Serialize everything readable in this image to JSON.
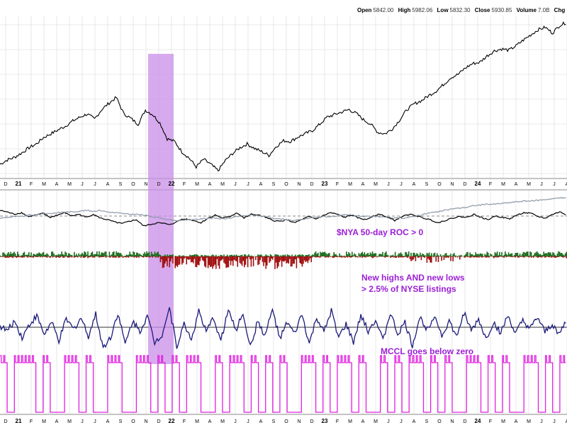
{
  "header": {
    "open_label": "Open",
    "open_value": "5842.00",
    "high_label": "High",
    "high_value": "5982.06",
    "low_label": "Low",
    "low_value": "5832.30",
    "close_label": "Close",
    "close_value": "5930.85",
    "volume_label": "Volume",
    "volume_value": "7.0B",
    "change_label": "Chg"
  },
  "annotations": {
    "roc": "$NYA 50-day ROC > 0",
    "hilo_1": "New highs AND new lows",
    "hilo_2": "> 2.5% of NYSE listings",
    "mccl": "MCCL goes below zero"
  },
  "colors": {
    "price": "#000000",
    "nya": "#000000",
    "nya_ma": "#8c9aa8",
    "hilo_up": "#1e6b1e",
    "hilo_down": "#a01010",
    "mccl": "#1a1a7a",
    "signal": "#e020e0",
    "highlight": "#c98ee8",
    "annotation": "#9b1fd6",
    "grid": "#d8d8d8"
  },
  "chart_data": {
    "type": "line",
    "x_axis": {
      "years": [
        "21",
        "22",
        "23",
        "24"
      ],
      "month_ticks_top": [
        "D",
        "21",
        "F",
        "M",
        "A",
        "M",
        "J",
        "J",
        "A",
        "S",
        "O",
        "N",
        "D",
        "22",
        "F",
        "M",
        "A",
        "M",
        "J",
        "J",
        "A",
        "S",
        "O",
        "N",
        "D",
        "23",
        "F",
        "M",
        "A",
        "M",
        "J",
        "J",
        "A",
        "S",
        "O",
        "N",
        "D",
        "24",
        "F",
        "M",
        "A",
        "M",
        "J",
        "J",
        "A"
      ],
      "month_ticks_bottom": [
        "D",
        "21",
        "F",
        "M",
        "A",
        "M",
        "J",
        "J",
        "A",
        "S",
        "O",
        "N",
        "D",
        "22",
        "F",
        "M",
        "A",
        "M",
        "J",
        "J",
        "A",
        "S",
        "O",
        "N",
        "D",
        "23",
        "F",
        "M",
        "A",
        "M",
        "J",
        "J",
        "A",
        "S",
        "O",
        "N",
        "D",
        "24",
        "F",
        "M",
        "A",
        "M",
        "J",
        "J",
        "A"
      ]
    },
    "highlight": {
      "start": "2021-12",
      "end": "2022-01"
    },
    "series": [
      {
        "panel": "price",
        "values": [
          3700,
          3770,
          3810,
          3880,
          3960,
          4020,
          4120,
          4180,
          4240,
          4300,
          4380,
          4440,
          4490,
          4410,
          4560,
          4660,
          4750,
          4500,
          4420,
          4330,
          4550,
          4480,
          4350,
          4100,
          4060,
          3900,
          3800,
          3660,
          3780,
          3700,
          3600,
          3760,
          3870,
          3960,
          4020,
          3950,
          3900,
          3840,
          3980,
          4070,
          4060,
          4130,
          4180,
          4230,
          4330,
          4440,
          4480,
          4520,
          4560,
          4500,
          4400,
          4330,
          4200,
          4180,
          4260,
          4400,
          4560,
          4650,
          4700,
          4780,
          4850,
          4950,
          5060,
          5110,
          5210,
          5280,
          5300,
          5400,
          5480,
          5510,
          5490,
          5560,
          5650,
          5730,
          5810,
          5850,
          5760,
          5880,
          5930
        ]
      },
      {
        "panel": "nya",
        "values": [
          0.3,
          0.28,
          0.25,
          0.27,
          0.22,
          0.24,
          0.26,
          0.21,
          0.24,
          0.27,
          0.23,
          0.25,
          0.21,
          0.25,
          0.2,
          0.18,
          0.15,
          0.13,
          0.16,
          0.18,
          0.1,
          0.12,
          0.14,
          0.13,
          0.12,
          0.18,
          0.19,
          0.17,
          0.14,
          0.2,
          0.24,
          0.2,
          0.22,
          0.27,
          0.2,
          0.25,
          0.24,
          0.21,
          0.17,
          0.16,
          0.18,
          0.14,
          0.18,
          0.22,
          0.19,
          0.23,
          0.27,
          0.25,
          0.21,
          0.24,
          0.2,
          0.18,
          0.23,
          0.25,
          0.21,
          0.17,
          0.22,
          0.25,
          0.23,
          0.2,
          0.18,
          0.14,
          0.17,
          0.2,
          0.22,
          0.21,
          0.25,
          0.21,
          0.18,
          0.23,
          0.21,
          0.19,
          0.24,
          0.27,
          0.26,
          0.22,
          0.2,
          0.25,
          0.28,
          0.24
        ]
      },
      {
        "panel": "nya_ma",
        "values": [
          0.2,
          0.21,
          0.22,
          0.22,
          0.24,
          0.24,
          0.26,
          0.26,
          0.27,
          0.28,
          0.28,
          0.29,
          0.3,
          0.29,
          0.3,
          0.28,
          0.27,
          0.26,
          0.25,
          0.25,
          0.24,
          0.22,
          0.21,
          0.19,
          0.17,
          0.17,
          0.18,
          0.18,
          0.19,
          0.2,
          0.2,
          0.19,
          0.2,
          0.22,
          0.23,
          0.24,
          0.23,
          0.22,
          0.2,
          0.19,
          0.18,
          0.17,
          0.18,
          0.2,
          0.21,
          0.22,
          0.22,
          0.23,
          0.24,
          0.24,
          0.23,
          0.22,
          0.22,
          0.22,
          0.21,
          0.2,
          0.2,
          0.21,
          0.23,
          0.25,
          0.27,
          0.28,
          0.3,
          0.32,
          0.33,
          0.34,
          0.36,
          0.37,
          0.38,
          0.38,
          0.39,
          0.4,
          0.41,
          0.42,
          0.42,
          0.43,
          0.44,
          0.45,
          0.46,
          0.46
        ]
      },
      {
        "panel": "mccl",
        "values": [
          5,
          -10,
          20,
          -30,
          10,
          35,
          -20,
          15,
          -40,
          25,
          -5,
          30,
          -25,
          40,
          -60,
          -30,
          45,
          -50,
          20,
          -10,
          35,
          -45,
          -20,
          60,
          -55,
          10,
          -35,
          50,
          -15,
          30,
          -40,
          55,
          -10,
          45,
          -60,
          20,
          -25,
          55,
          -35,
          15,
          -20,
          40,
          -50,
          30,
          -15,
          50,
          -30,
          10,
          -45,
          35,
          -10,
          25,
          -40,
          45,
          -20,
          15,
          -55,
          30,
          -5,
          40,
          -25,
          20,
          -30,
          45,
          -10,
          25,
          -35,
          15,
          -15,
          35,
          -20,
          20,
          -5,
          30,
          -15,
          10,
          -20,
          25
        ]
      },
      {
        "panel": "signal",
        "values": [
          1,
          0,
          1,
          1,
          1,
          0,
          1,
          0,
          0,
          1,
          1,
          0,
          1,
          0,
          0,
          1,
          1,
          0,
          0,
          1,
          1,
          0,
          1,
          0,
          1,
          0,
          1,
          1,
          0,
          0,
          1,
          0,
          1,
          1,
          0,
          1,
          0,
          1,
          0,
          1,
          0,
          0,
          1,
          1,
          0,
          1,
          0,
          1,
          1,
          0,
          1,
          0,
          0,
          1,
          0,
          1,
          0,
          1,
          1,
          0,
          1,
          0,
          1,
          0,
          0,
          1,
          1,
          0,
          1,
          0,
          1,
          0,
          0,
          1,
          1,
          0,
          1,
          0,
          1,
          1
        ]
      }
    ]
  }
}
